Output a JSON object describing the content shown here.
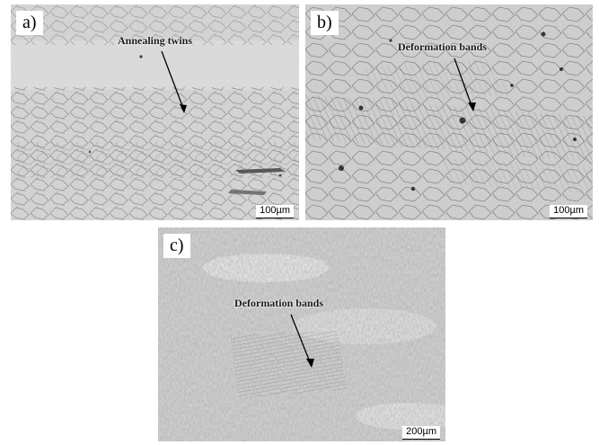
{
  "panels": [
    {
      "id": "a",
      "label": "a)",
      "annotation": "Annealing twins",
      "scale_bar": "100µm"
    },
    {
      "id": "b",
      "label": "b)",
      "annotation": "Deformation bands",
      "scale_bar": "100µm"
    },
    {
      "id": "c",
      "label": "c)",
      "annotation": "Deformation bands",
      "scale_bar": "200µm"
    }
  ]
}
